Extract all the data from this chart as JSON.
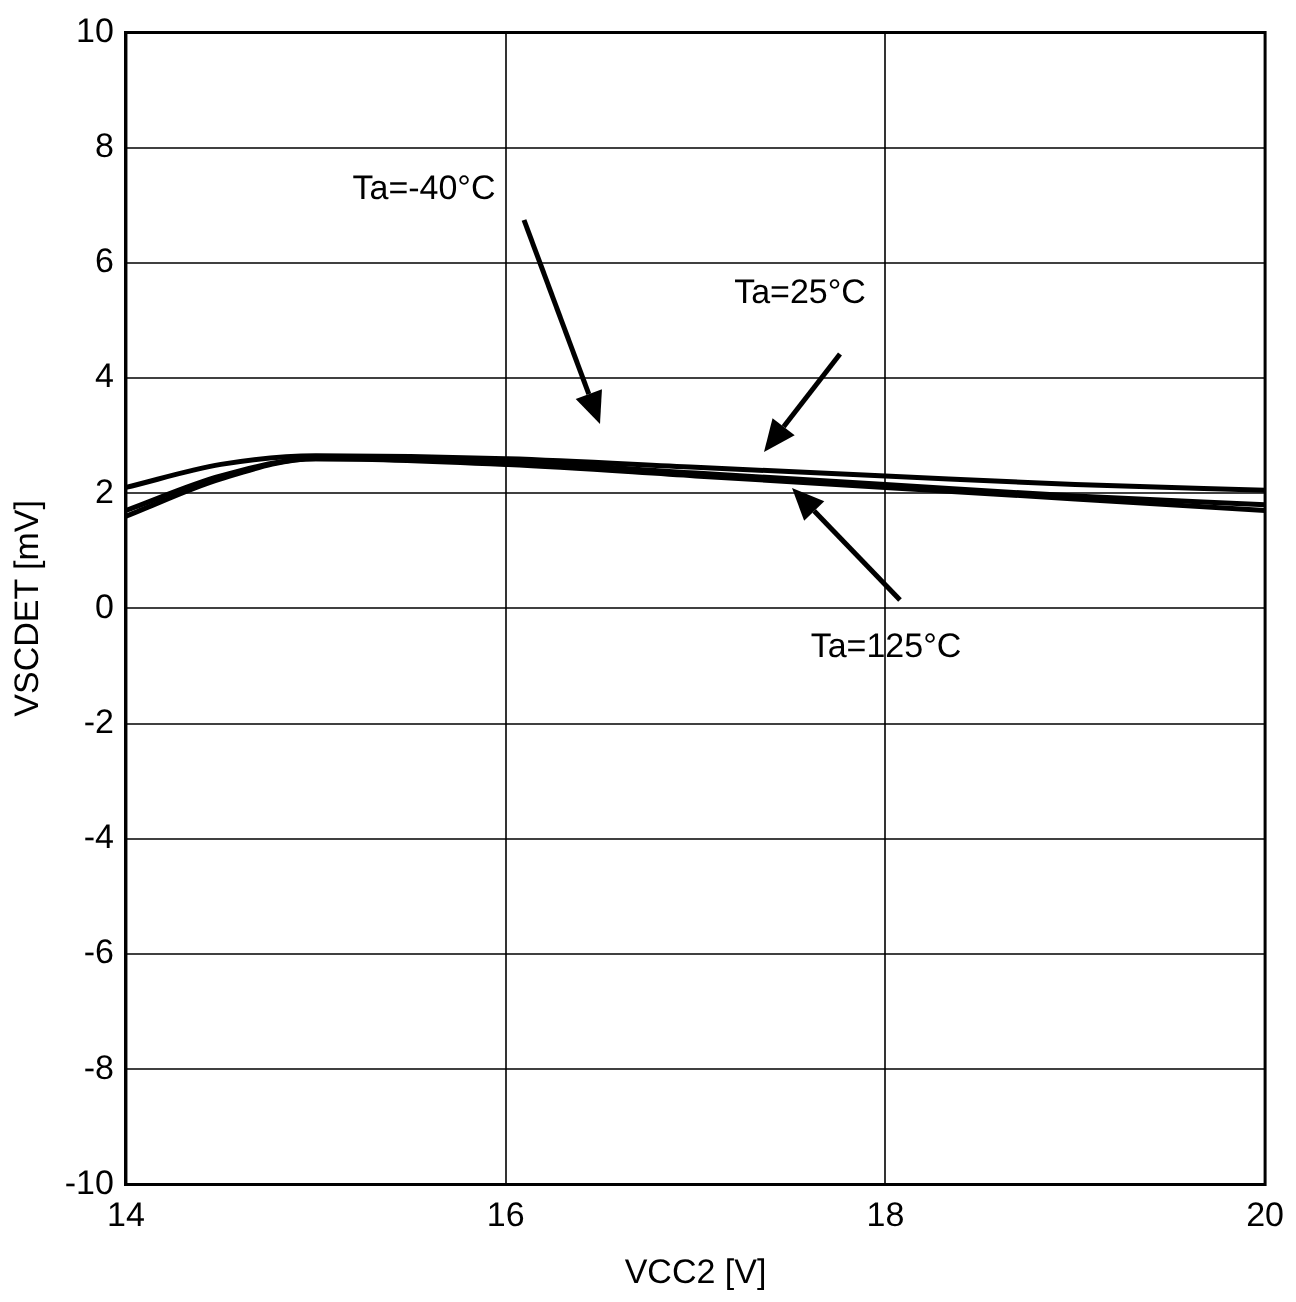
{
  "chart_data": {
    "type": "line",
    "xlabel": "VCC2 [V]",
    "ylabel": "VSCDET [mV]",
    "x": [
      14,
      14.5,
      15,
      16,
      17,
      18,
      19,
      20
    ],
    "series": [
      {
        "color": "#000000",
        "values": [
          2.1,
          2.5,
          2.65,
          2.6,
          2.45,
          2.3,
          2.15,
          2.05
        ]
      },
      {
        "color": "#000000",
        "values": [
          1.7,
          2.3,
          2.6,
          2.55,
          2.35,
          2.15,
          1.95,
          1.8
        ]
      },
      {
        "color": "#000000",
        "values": [
          1.6,
          2.25,
          2.6,
          2.5,
          2.3,
          2.1,
          1.9,
          1.7
        ]
      }
    ],
    "xlim": [
      14,
      20
    ],
    "xticks": [
      14,
      16,
      18,
      20
    ],
    "ylim": [
      -10,
      10
    ],
    "yticks": [
      -10,
      -8,
      -6,
      -4,
      -2,
      0,
      2,
      4,
      6,
      8,
      10
    ],
    "grid": true,
    "legend": false,
    "marker": "none",
    "line_style": "solid",
    "annotations": [
      "Ta=-40°C",
      "Ta=25°C",
      "Ta=125°C"
    ]
  }
}
